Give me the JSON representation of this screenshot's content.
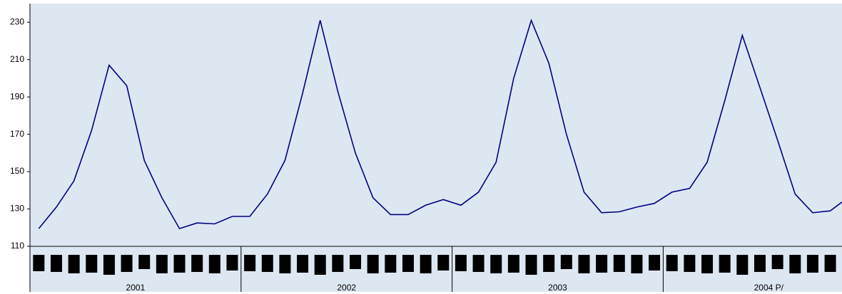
{
  "chart_data": {
    "type": "line",
    "groups": [
      "2001",
      "2002",
      "2003",
      "2004 P/"
    ],
    "values": [
      119.5,
      131,
      145,
      172,
      207,
      196,
      156,
      136,
      119.5,
      122.5,
      122,
      126,
      126,
      138,
      156,
      192,
      231,
      193,
      160,
      136,
      127,
      127,
      132,
      135,
      132,
      139,
      155,
      200,
      231,
      208,
      170,
      139,
      128,
      128.5,
      131,
      133,
      139,
      141,
      155,
      188,
      223,
      195,
      167,
      138,
      128,
      129,
      136
    ],
    "color": "#000080",
    "ylim": [
      110,
      240
    ],
    "yticks": [
      110,
      130,
      150,
      170,
      190,
      210,
      230
    ]
  }
}
